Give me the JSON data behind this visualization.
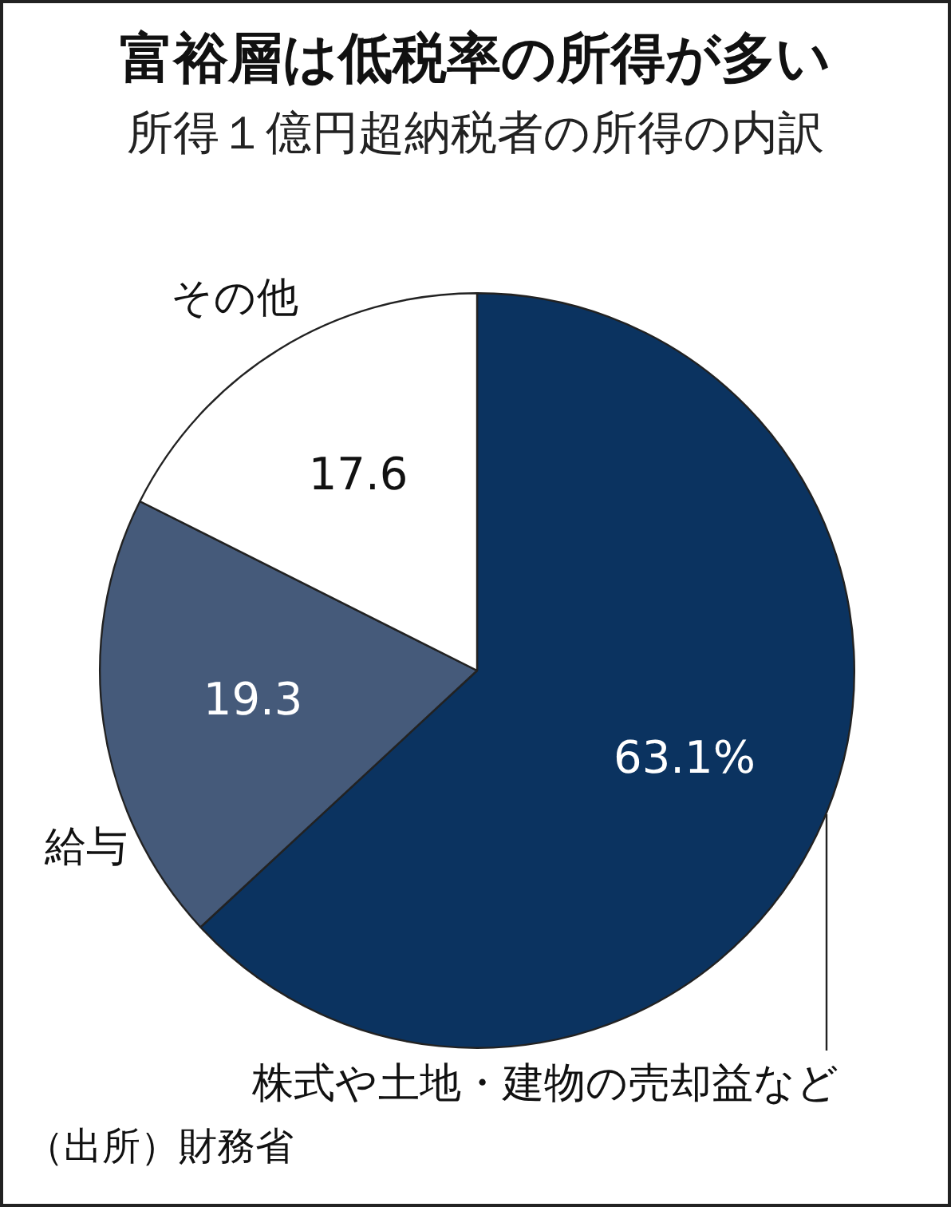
{
  "chart_data": {
    "type": "pie",
    "title": "富裕層は低税率の所得が多い",
    "subtitle": "所得１億円超納税者の所得の内訳",
    "categories": [
      "株式や土地・建物の売却益など",
      "給与",
      "その他"
    ],
    "values": [
      63.1,
      19.3,
      17.6
    ],
    "colors": [
      "#0b3360",
      "#455a7a",
      "#ffffff"
    ],
    "value_labels": [
      "63.1%",
      "19.3",
      "17.6"
    ],
    "legend": false,
    "annotations": [
      "（出所）財務省"
    ]
  }
}
